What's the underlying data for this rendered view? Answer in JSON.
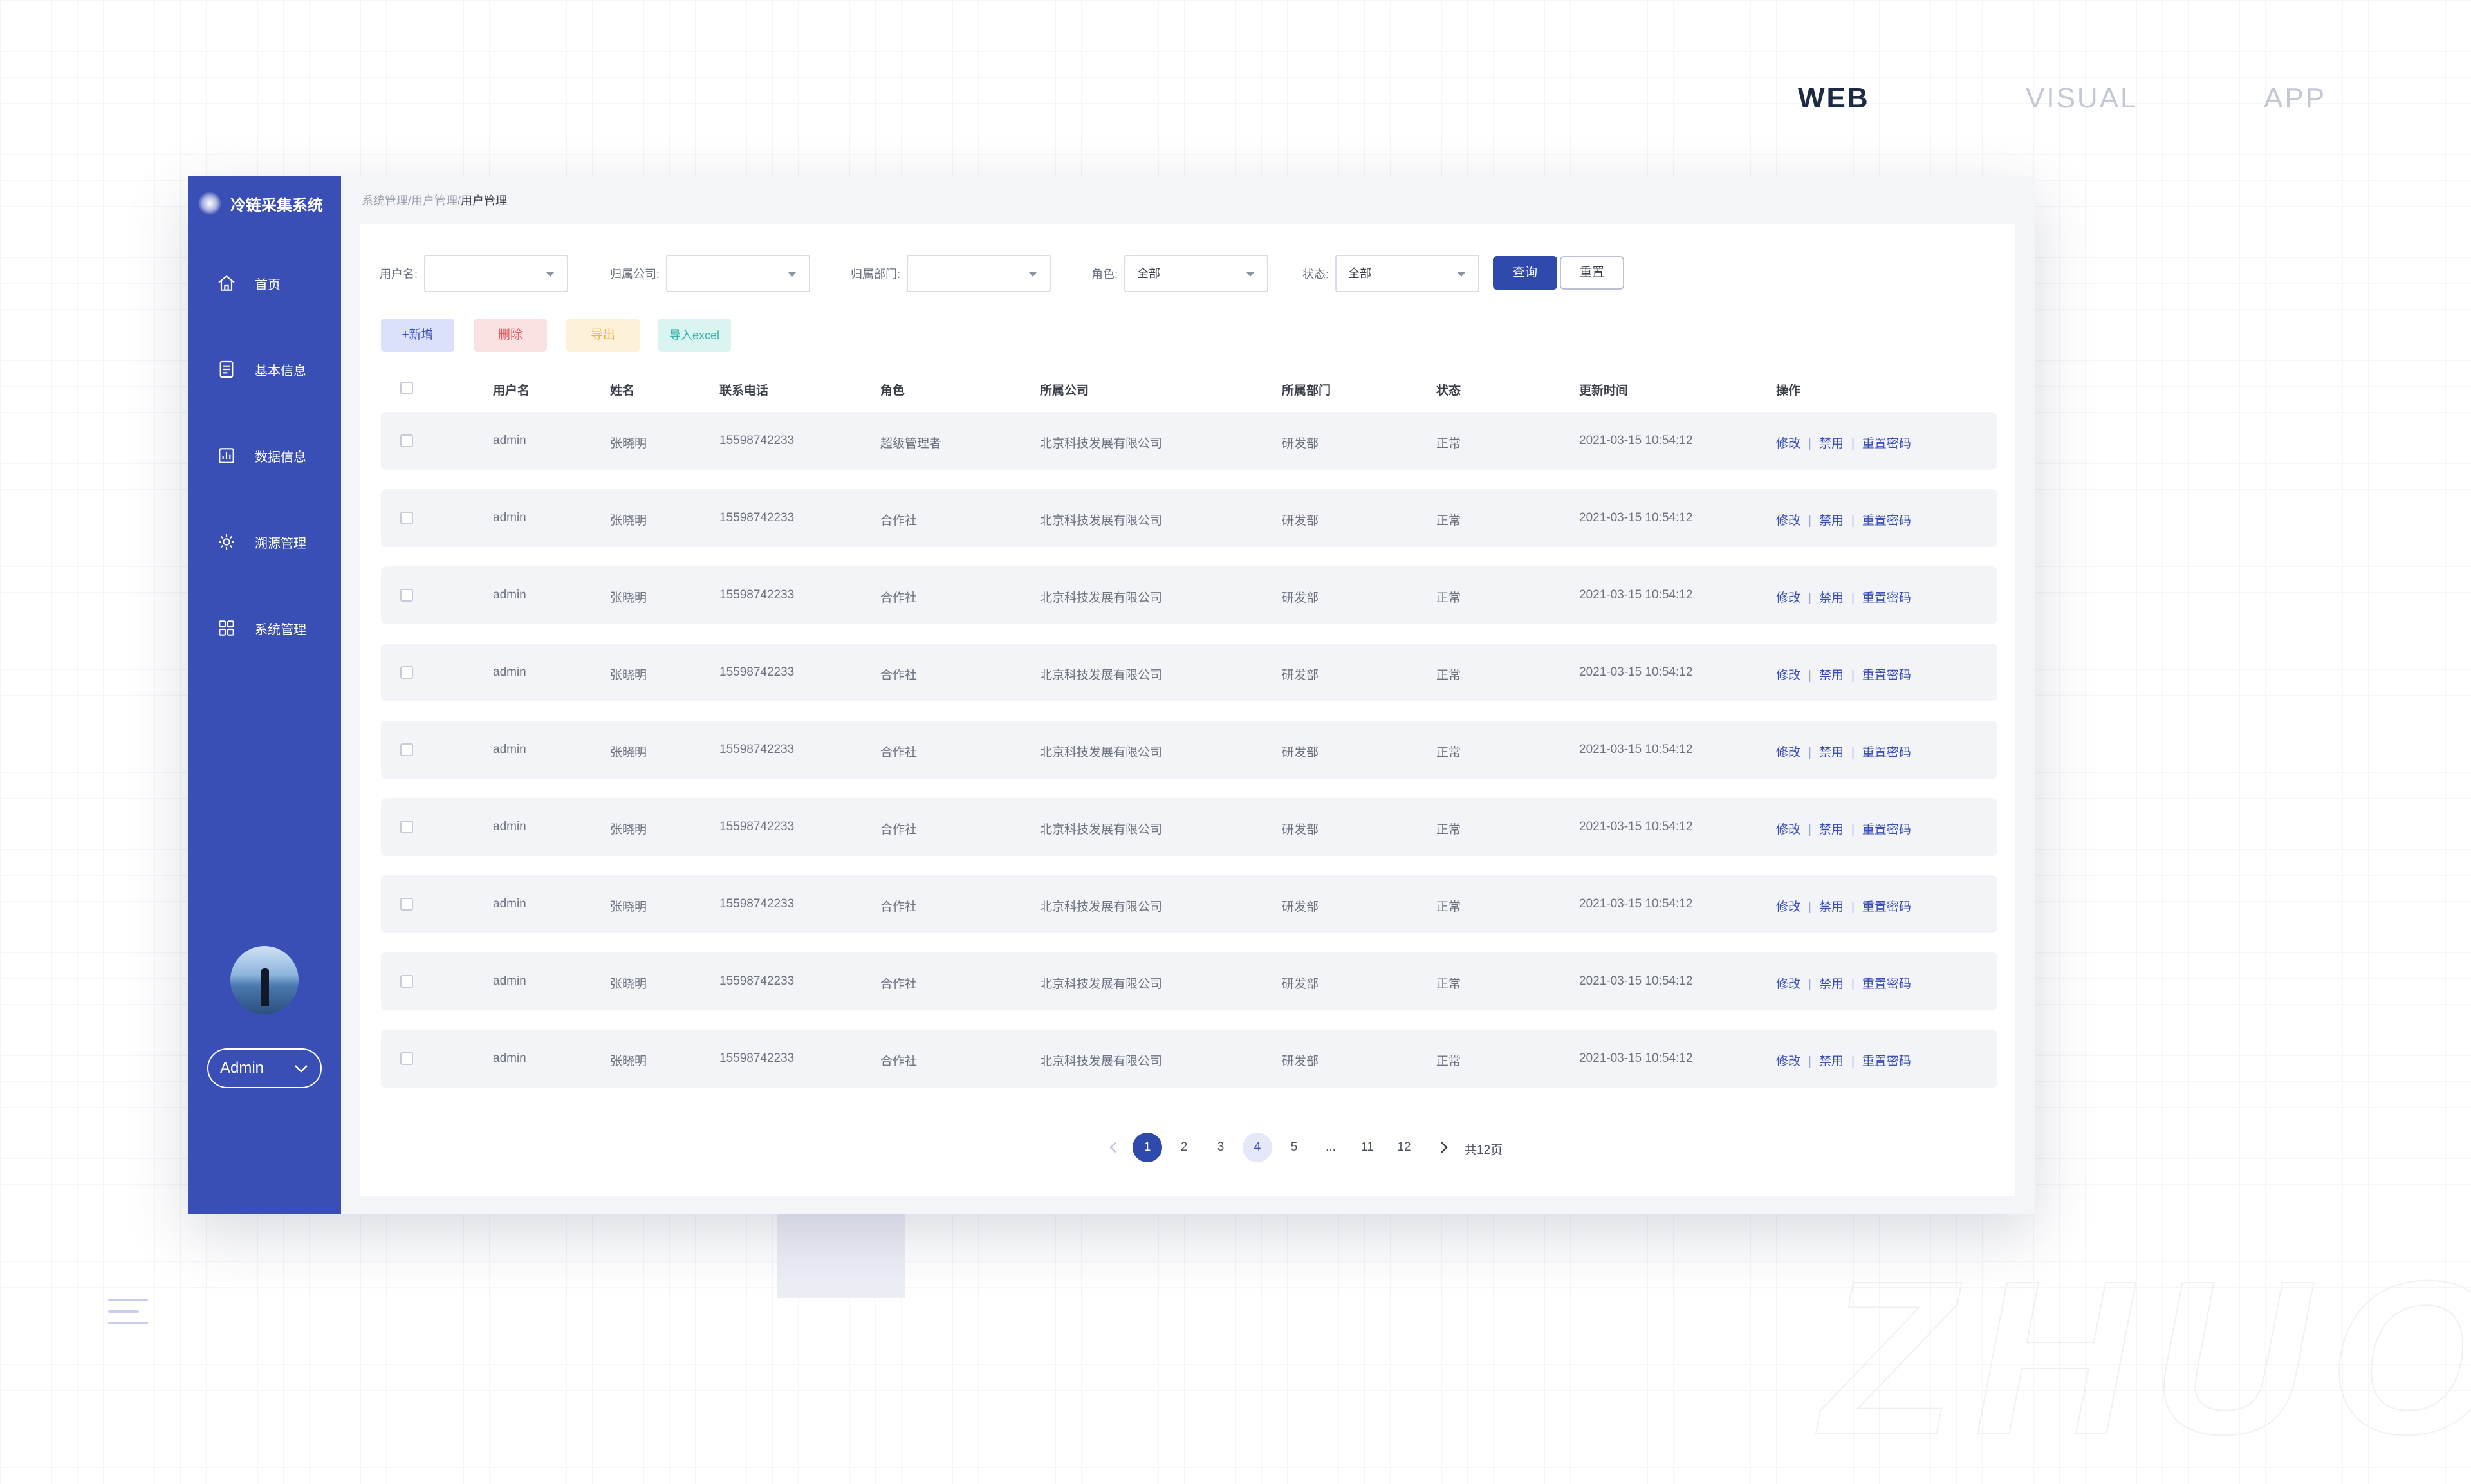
{
  "topnav": {
    "web": "WEB",
    "visual": "VISUAL",
    "app": "APP"
  },
  "app": {
    "title": "冷链采集系统"
  },
  "sidebar": {
    "items": [
      {
        "label": "首页",
        "icon": "home-icon"
      },
      {
        "label": "基本信息",
        "icon": "document-icon"
      },
      {
        "label": "数据信息",
        "icon": "chart-icon"
      },
      {
        "label": "溯源管理",
        "icon": "gear-icon"
      },
      {
        "label": "系统管理",
        "icon": "grid-icon"
      }
    ],
    "user": "Admin"
  },
  "breadcrumb": {
    "part1": "系统管理/",
    "part2": "用户管理/",
    "current": "用户管理"
  },
  "filters": {
    "username_label": "用户名:",
    "company_label": "归属公司:",
    "dept_label": "归属部门:",
    "role_label": "角色:",
    "role_value": "全部",
    "status_label": "状态:",
    "status_value": "全部",
    "query": "查询",
    "reset": "重置"
  },
  "actions": {
    "add": "+新增",
    "delete": "删除",
    "export": "导出",
    "import": "导入excel"
  },
  "table": {
    "headers": [
      "用户名",
      "姓名",
      "联系电话",
      "角色",
      "所属公司",
      "所属部门",
      "状态",
      "更新时间",
      "操作"
    ],
    "ops": {
      "edit": "修改",
      "disable": "禁用",
      "reset_password": "重置密码"
    },
    "rows": [
      [
        "admin",
        "张晓明",
        "15598742233",
        "超级管理者",
        "北京科技发展有限公司",
        "研发部",
        "正常",
        "2021-03-15 10:54:12"
      ],
      [
        "admin",
        "张晓明",
        "15598742233",
        "合作社",
        "北京科技发展有限公司",
        "研发部",
        "正常",
        "2021-03-15 10:54:12"
      ],
      [
        "admin",
        "张晓明",
        "15598742233",
        "合作社",
        "北京科技发展有限公司",
        "研发部",
        "正常",
        "2021-03-15 10:54:12"
      ],
      [
        "admin",
        "张晓明",
        "15598742233",
        "合作社",
        "北京科技发展有限公司",
        "研发部",
        "正常",
        "2021-03-15 10:54:12"
      ],
      [
        "admin",
        "张晓明",
        "15598742233",
        "合作社",
        "北京科技发展有限公司",
        "研发部",
        "正常",
        "2021-03-15 10:54:12"
      ],
      [
        "admin",
        "张晓明",
        "15598742233",
        "合作社",
        "北京科技发展有限公司",
        "研发部",
        "正常",
        "2021-03-15 10:54:12"
      ],
      [
        "admin",
        "张晓明",
        "15598742233",
        "合作社",
        "北京科技发展有限公司",
        "研发部",
        "正常",
        "2021-03-15 10:54:12"
      ],
      [
        "admin",
        "张晓明",
        "15598742233",
        "合作社",
        "北京科技发展有限公司",
        "研发部",
        "正常",
        "2021-03-15 10:54:12"
      ],
      [
        "admin",
        "张晓明",
        "15598742233",
        "合作社",
        "北京科技发展有限公司",
        "研发部",
        "正常",
        "2021-03-15 10:54:12"
      ]
    ]
  },
  "pagination": {
    "pages": [
      "1",
      "2",
      "3",
      "4",
      "5",
      "...",
      "11",
      "12"
    ],
    "current": "1",
    "highlighted": "4",
    "total": "共12页"
  },
  "colors": {
    "sidebar": "#3a4fb5",
    "primary": "#2f49ad",
    "danger": "#e15b5b",
    "warning": "#f0b43c",
    "success": "#36b5a8"
  }
}
